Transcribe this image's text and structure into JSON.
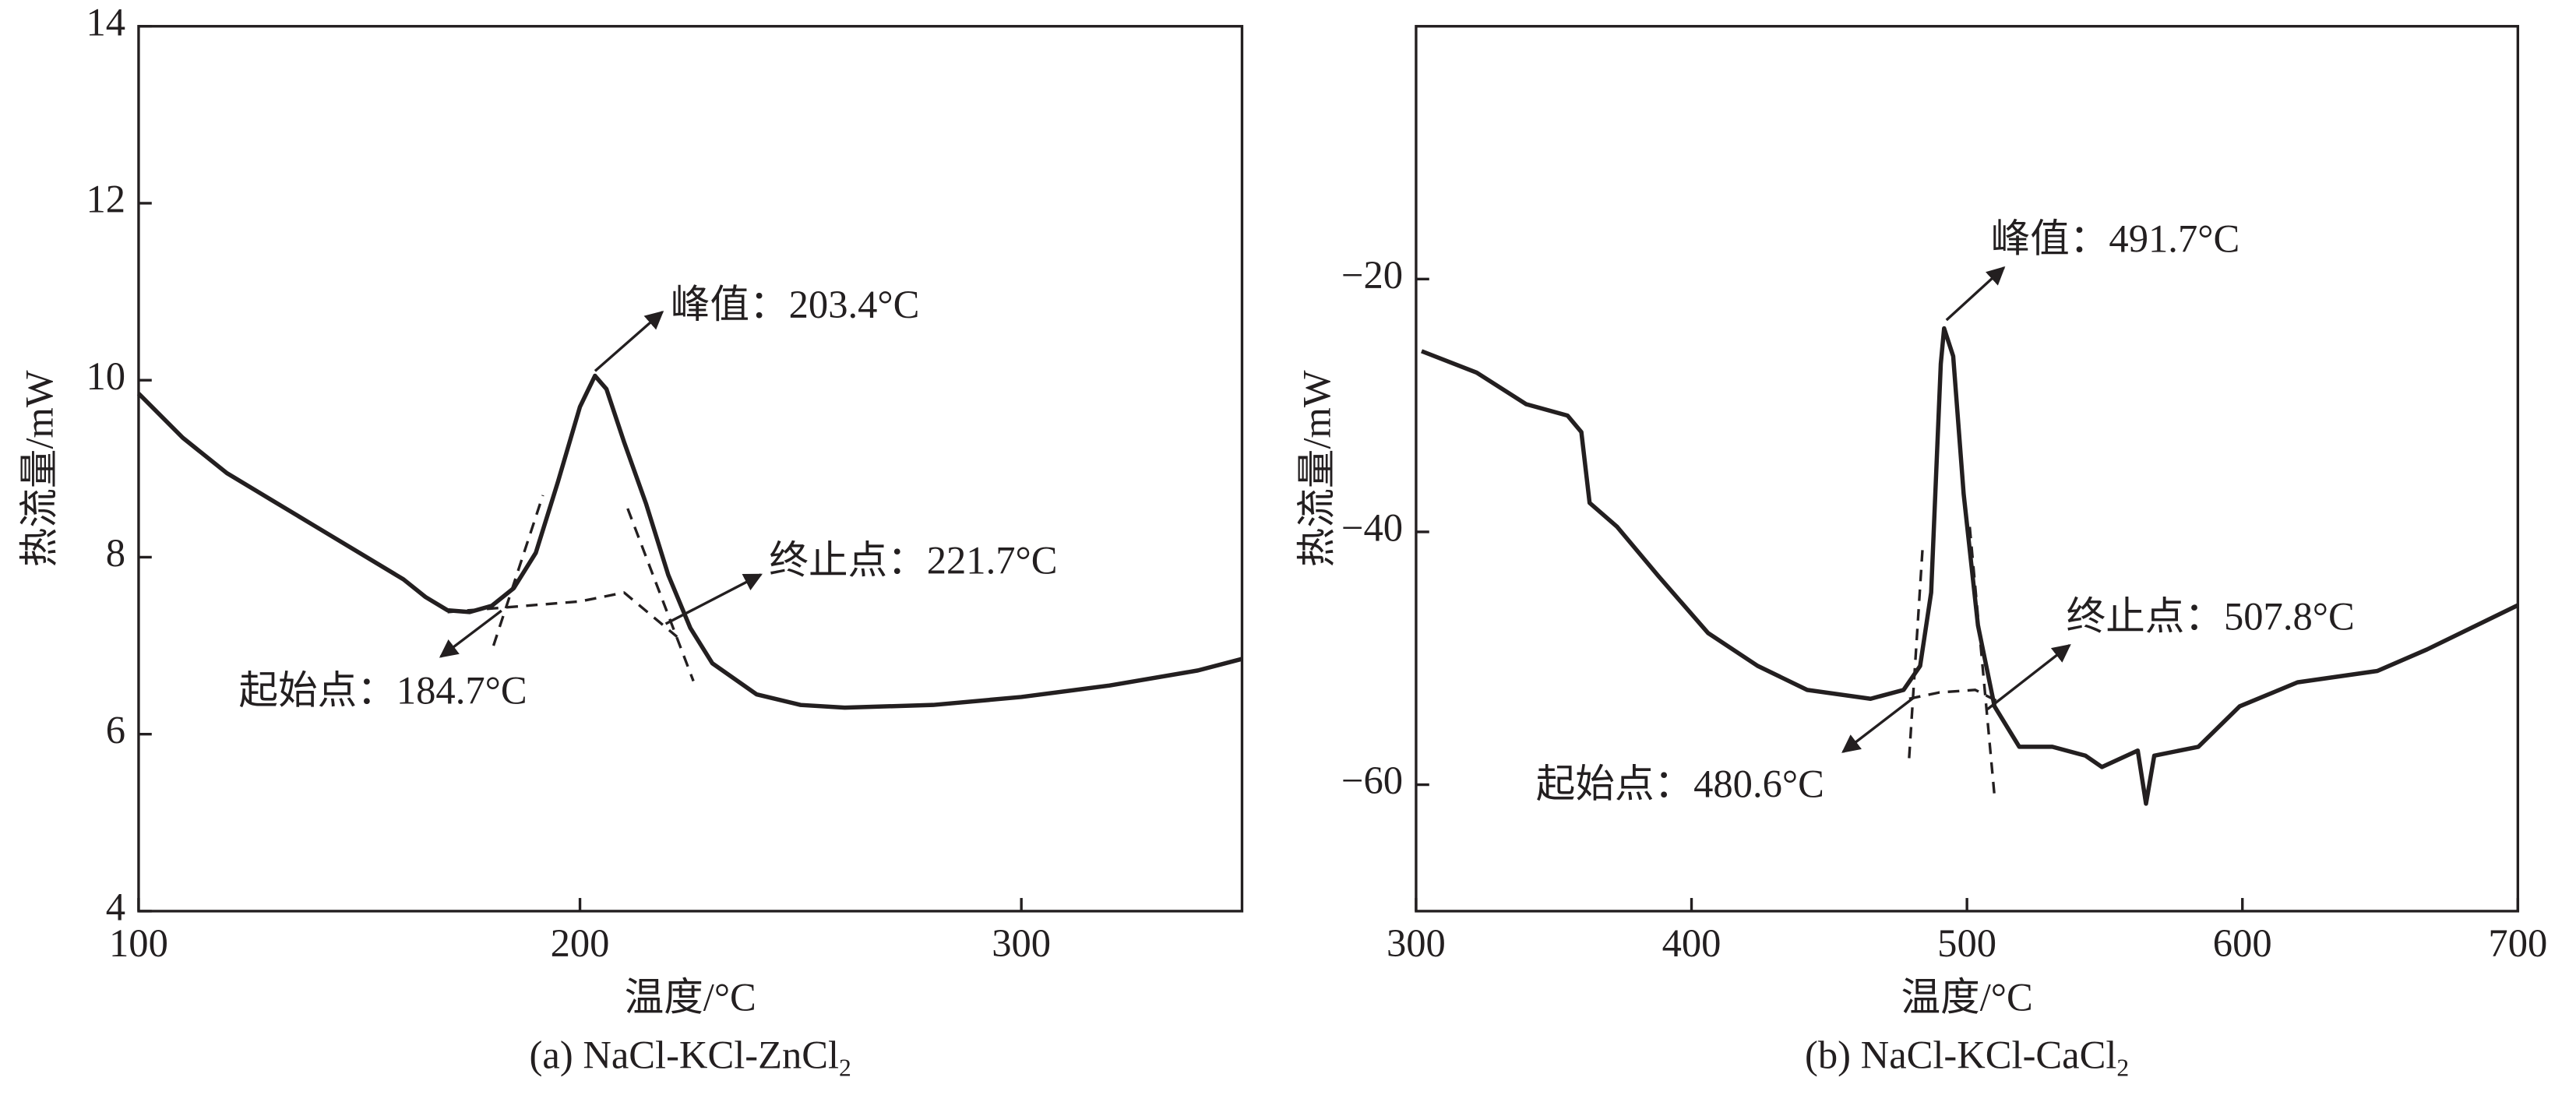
{
  "chart_data": [
    {
      "type": "line",
      "xlabel": "温度/°C",
      "ylabel": "热流量/mW",
      "caption": "(a) NaCl-KCl-ZnCl",
      "caption_sub": "2",
      "xlim": [
        100,
        350
      ],
      "ylim": [
        4,
        14
      ],
      "xticks": [
        100,
        200,
        300
      ],
      "yticks": [
        4,
        6,
        8,
        10,
        12,
        14
      ],
      "series": [
        {
          "color": "#231f20",
          "x": [
            100,
            110,
            120,
            130,
            140,
            150,
            160,
            165,
            170,
            175,
            180,
            185,
            190,
            195,
            200,
            203.4,
            206,
            210,
            215,
            220,
            225,
            230,
            240,
            250,
            260,
            280,
            300,
            320,
            340,
            350
          ],
          "values": [
            9.85,
            9.35,
            8.95,
            8.65,
            8.35,
            8.05,
            7.75,
            7.55,
            7.4,
            7.38,
            7.45,
            7.65,
            8.05,
            8.85,
            9.7,
            10.05,
            9.9,
            9.3,
            8.6,
            7.8,
            7.2,
            6.8,
            6.45,
            6.33,
            6.3,
            6.33,
            6.42,
            6.55,
            6.72,
            6.85
          ]
        },
        {
          "color": "#231f20",
          "dash": true,
          "x": [
            180.4,
            191.6
          ],
          "values": [
            7.0,
            8.7
          ]
        },
        {
          "color": "#231f20",
          "dash": true,
          "x": [
            170,
            200,
            210,
            222
          ],
          "values": [
            7.38,
            7.5,
            7.6,
            7.1
          ]
        },
        {
          "color": "#231f20",
          "dash": true,
          "x": [
            210.8,
            225.7
          ],
          "values": [
            8.55,
            6.6
          ]
        }
      ],
      "annotations": [
        {
          "text": "峰值：203.4°C"
        },
        {
          "text": "起始点：184.7°C"
        },
        {
          "text": "终止点：221.7°C"
        }
      ]
    },
    {
      "type": "line",
      "xlabel": "温度/°C",
      "ylabel": "热流量/mW",
      "caption": "(b) NaCl-KCl-CaCl",
      "caption_sub": "2",
      "xlim": [
        300,
        700
      ],
      "ylim": [
        -70,
        0
      ],
      "xticks": [
        300,
        400,
        500,
        600,
        700
      ],
      "yticks": [
        {
          "value": -20,
          "label": "−20"
        },
        {
          "value": -40,
          "label": "−40"
        },
        {
          "value": -60,
          "label": "−60"
        }
      ],
      "series": [
        {
          "color": "#231f20",
          "x": [
            302,
            322,
            340,
            355,
            360,
            363,
            373,
            388,
            406,
            424,
            442,
            465,
            477,
            483,
            487,
            490.5,
            491.7,
            495,
            498.8,
            504,
            510,
            519,
            531,
            543,
            549,
            558,
            562,
            565,
            568,
            584,
            599,
            620,
            649,
            667,
            700
          ],
          "values": [
            -25.7,
            -27.4,
            -29.9,
            -30.8,
            -32.1,
            -37.7,
            -39.6,
            -43.5,
            -48,
            -50.6,
            -52.5,
            -53.2,
            -52.5,
            -50.6,
            -44.8,
            -26.7,
            -23.9,
            -26.1,
            -37,
            -47.4,
            -53.8,
            -57,
            -57,
            -57.7,
            -58.6,
            -57.7,
            -57.3,
            -61.5,
            -57.7,
            -57,
            -53.8,
            -51.9,
            -51,
            -49.3,
            -45.8
          ]
        },
        {
          "color": "#231f20",
          "dash": true,
          "x": [
            479,
            484
          ],
          "values": [
            -57.9,
            -40.9
          ]
        },
        {
          "color": "#231f20",
          "dash": true,
          "x": [
            479,
            490,
            503,
            512
          ],
          "values": [
            -53.2,
            -52.7,
            -52.5,
            -53.5
          ]
        },
        {
          "color": "#231f20",
          "dash": true,
          "x": [
            501,
            510
          ],
          "values": [
            -39.6,
            -60.9
          ]
        }
      ],
      "annotations": [
        {
          "text": "峰值：491.7°C"
        },
        {
          "text": "起始点：480.6°C"
        },
        {
          "text": "终止点：507.8°C"
        }
      ]
    }
  ]
}
